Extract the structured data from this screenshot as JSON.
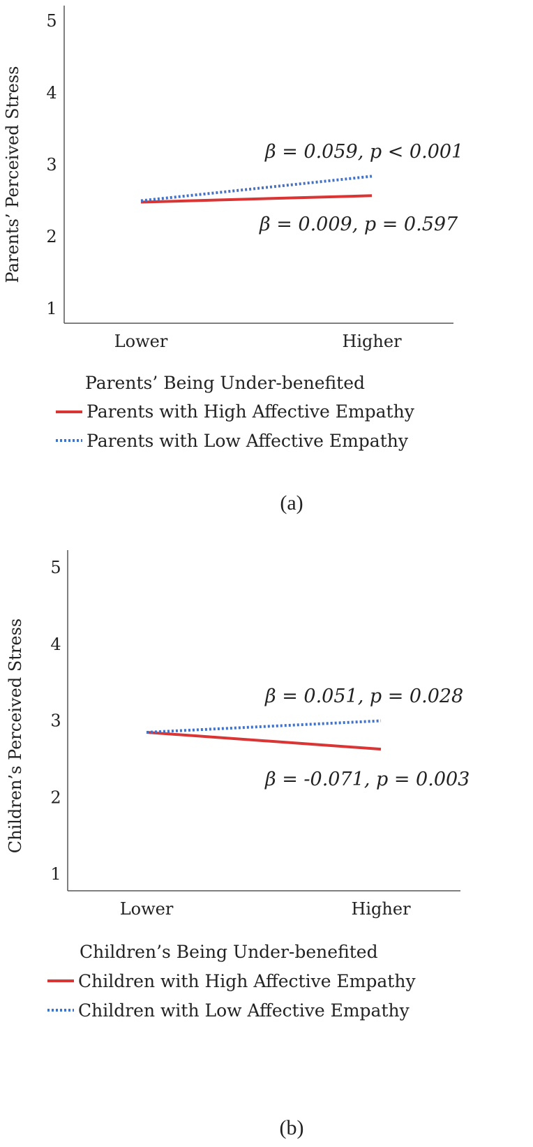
{
  "chart_data": [
    {
      "type": "line",
      "panel": "(a)",
      "title": "",
      "ylabel": "Parents’ Perceived Stress",
      "xlabel": "Parents’ Being Under-benefited",
      "categories": [
        "Lower",
        "Higher"
      ],
      "ylim": [
        0.8,
        5.2
      ],
      "yticks": [
        1,
        2,
        3,
        4,
        5
      ],
      "grid": false,
      "series": [
        {
          "name": "Parents with High Affective Empathy",
          "values": [
            2.48,
            2.57
          ],
          "color": "#d93535",
          "style": "solid",
          "annotation": "β = 0.009, p = 0.597"
        },
        {
          "name": "Parents with Low Affective Empathy",
          "values": [
            2.5,
            2.84
          ],
          "color": "#4472c4",
          "style": "dotted",
          "annotation": "β = 0.059, p < 0.001"
        }
      ]
    },
    {
      "type": "line",
      "panel": "(b)",
      "title": "",
      "ylabel": "Children’s Perceived Stress",
      "xlabel": "Children’s Being Under-benefited",
      "categories": [
        "Lower",
        "Higher"
      ],
      "ylim": [
        0.8,
        5.2
      ],
      "yticks": [
        1,
        2,
        3,
        4,
        5
      ],
      "grid": false,
      "series": [
        {
          "name": "Children with High Affective Empathy",
          "values": [
            2.85,
            2.63
          ],
          "color": "#d93535",
          "style": "solid",
          "annotation": "β = -0.071, p = 0.003"
        },
        {
          "name": "Children with Low Affective Empathy",
          "values": [
            2.85,
            3.0
          ],
          "color": "#4472c4",
          "style": "dotted",
          "annotation": "β = 0.051, p = 0.028"
        }
      ]
    }
  ]
}
